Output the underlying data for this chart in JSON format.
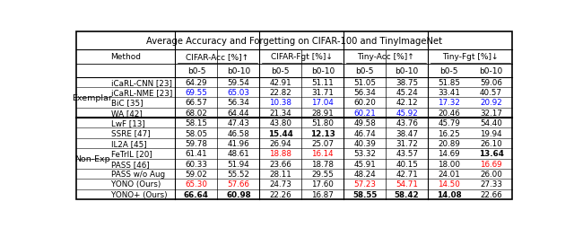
{
  "title": "Average Accuracy and Forgetting on CIFAR-100 and TinyImageNet",
  "row_group1_label": "Exemplar",
  "row_group2_label": "Non-Exp",
  "rows": [
    {
      "method": "iCaRL-CNN [23]",
      "group": "Exemplar",
      "vals": [
        "64.29",
        "59.54",
        "42.91",
        "51.11",
        "51.05",
        "38.75",
        "51.85",
        "59.06"
      ],
      "colors": [
        "k",
        "k",
        "k",
        "k",
        "k",
        "k",
        "k",
        "k"
      ],
      "bold": [
        false,
        false,
        false,
        false,
        false,
        false,
        false,
        false
      ]
    },
    {
      "method": "iCaRL-NME [23]",
      "group": "Exemplar",
      "vals": [
        "69.55",
        "65.03",
        "22.82",
        "31.71",
        "56.34",
        "45.24",
        "33.41",
        "40.57"
      ],
      "colors": [
        "blue",
        "blue",
        "k",
        "k",
        "k",
        "k",
        "k",
        "k"
      ],
      "bold": [
        false,
        false,
        false,
        false,
        false,
        false,
        false,
        false
      ]
    },
    {
      "method": "BiC [35]",
      "group": "Exemplar",
      "vals": [
        "66.57",
        "56.34",
        "10.38",
        "17.04",
        "60.20",
        "42.12",
        "17.32",
        "20.92"
      ],
      "colors": [
        "k",
        "k",
        "blue",
        "blue",
        "k",
        "k",
        "blue",
        "blue"
      ],
      "bold": [
        false,
        false,
        false,
        false,
        false,
        false,
        false,
        false
      ]
    },
    {
      "method": "WA [42]",
      "group": "Exemplar",
      "vals": [
        "68.02",
        "64.44",
        "21.34",
        "28.91",
        "60.21",
        "45.92",
        "20.46",
        "32.17"
      ],
      "colors": [
        "k",
        "k",
        "k",
        "k",
        "blue",
        "blue",
        "k",
        "k"
      ],
      "bold": [
        false,
        false,
        false,
        false,
        false,
        false,
        false,
        false
      ]
    },
    {
      "method": "LwF [13]",
      "group": "Non-Exp",
      "vals": [
        "58.15",
        "47.43",
        "43.80",
        "51.80",
        "49.58",
        "43.76",
        "45.79",
        "54.40"
      ],
      "colors": [
        "k",
        "k",
        "k",
        "k",
        "k",
        "k",
        "k",
        "k"
      ],
      "bold": [
        false,
        false,
        false,
        false,
        false,
        false,
        false,
        false
      ]
    },
    {
      "method": "SSRE [47]",
      "group": "Non-Exp",
      "vals": [
        "58.05",
        "46.58",
        "15.44",
        "12.13",
        "46.74",
        "38.47",
        "16.25",
        "19.94"
      ],
      "colors": [
        "k",
        "k",
        "k",
        "k",
        "k",
        "k",
        "k",
        "k"
      ],
      "bold": [
        false,
        false,
        true,
        true,
        false,
        false,
        false,
        false
      ]
    },
    {
      "method": "IL2A [45]",
      "group": "Non-Exp",
      "vals": [
        "59.78",
        "41.96",
        "26.94",
        "25.07",
        "40.39",
        "31.72",
        "20.89",
        "26.10"
      ],
      "colors": [
        "k",
        "k",
        "k",
        "k",
        "k",
        "k",
        "k",
        "k"
      ],
      "bold": [
        false,
        false,
        false,
        false,
        false,
        false,
        false,
        false
      ]
    },
    {
      "method": "FeTrIL [20]",
      "group": "Non-Exp",
      "vals": [
        "61.41",
        "48.61",
        "18.88",
        "16.14",
        "53.32",
        "43.57",
        "14.69",
        "13.64"
      ],
      "colors": [
        "k",
        "k",
        "red",
        "red",
        "k",
        "k",
        "k",
        "k"
      ],
      "bold": [
        false,
        false,
        false,
        false,
        false,
        false,
        false,
        true
      ]
    },
    {
      "method": "PASS [46]",
      "group": "Non-Exp",
      "vals": [
        "60.33",
        "51.94",
        "23.66",
        "18.78",
        "45.91",
        "40.15",
        "18.00",
        "16.69"
      ],
      "colors": [
        "k",
        "k",
        "k",
        "k",
        "k",
        "k",
        "k",
        "red"
      ],
      "bold": [
        false,
        false,
        false,
        false,
        false,
        false,
        false,
        false
      ]
    },
    {
      "method": "PASS w/o Aug",
      "group": "Non-Exp",
      "vals": [
        "59.02",
        "55.52",
        "28.11",
        "29.55",
        "48.24",
        "42.71",
        "24.01",
        "26.00"
      ],
      "colors": [
        "k",
        "k",
        "k",
        "k",
        "k",
        "k",
        "k",
        "k"
      ],
      "bold": [
        false,
        false,
        false,
        false,
        false,
        false,
        false,
        false
      ]
    },
    {
      "method": "YONO (Ours)",
      "group": "Non-Exp",
      "vals": [
        "65.30",
        "57.66",
        "24.73",
        "17.60",
        "57.23",
        "54.71",
        "14.50",
        "27.33"
      ],
      "colors": [
        "red",
        "red",
        "k",
        "k",
        "red",
        "red",
        "red",
        "k"
      ],
      "bold": [
        false,
        false,
        false,
        false,
        false,
        false,
        false,
        false
      ]
    },
    {
      "method": "YONO+ (Ours)",
      "group": "Non-Exp",
      "vals": [
        "66.64",
        "60.98",
        "22.26",
        "16.87",
        "58.55",
        "58.42",
        "14.08",
        "22.66"
      ],
      "colors": [
        "k",
        "k",
        "k",
        "k",
        "k",
        "k",
        "k",
        "k"
      ],
      "bold": [
        true,
        true,
        false,
        false,
        true,
        true,
        true,
        false
      ]
    }
  ]
}
